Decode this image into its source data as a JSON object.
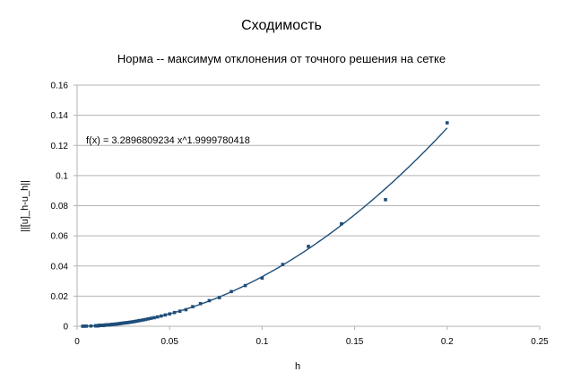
{
  "chart_data": {
    "type": "scatter",
    "title": "Сходимость",
    "subtitle": "Норма -- максимум отклонения от точного решения на сетке",
    "xlabel": "h",
    "ylabel": "||[u]_h-u_h||",
    "xlim": [
      0,
      0.25
    ],
    "ylim": [
      0,
      0.16
    ],
    "x_ticks": [
      0,
      0.05,
      0.1,
      0.15,
      0.2,
      0.25
    ],
    "y_ticks": [
      0,
      0.02,
      0.04,
      0.06,
      0.08,
      0.1,
      0.12,
      0.14,
      0.16
    ],
    "x_tick_labels": [
      "0",
      "0.05",
      "0.1",
      "0.15",
      "0.2",
      "0.25"
    ],
    "y_tick_labels": [
      "0",
      "0.02",
      "0.04",
      "0.06",
      "0.08",
      "0.1",
      "0.12",
      "0.14",
      "0.16"
    ],
    "grid": {
      "horizontal": true,
      "vertical": false
    },
    "series": [
      {
        "x": [
          0.2,
          0.166667,
          0.142857,
          0.125,
          0.111111,
          0.1,
          0.090909,
          0.083333,
          0.076923,
          0.071429,
          0.066667,
          0.0625,
          0.058824,
          0.055556,
          0.052632,
          0.05,
          0.047619,
          0.045455,
          0.043478,
          0.041667,
          0.04,
          0.038462,
          0.037037,
          0.035714,
          0.034483,
          0.033333,
          0.032258,
          0.03125,
          0.030303,
          0.029412,
          0.028571,
          0.027778,
          0.027027,
          0.026316,
          0.025641,
          0.025,
          0.02439,
          0.02381,
          0.023256,
          0.022727,
          0.022222,
          0.021739,
          0.021277,
          0.020833,
          0.020408,
          0.02,
          0.019608,
          0.019231,
          0.018868,
          0.018519,
          0.018182,
          0.017857,
          0.017544,
          0.017241,
          0.016949,
          0.016667,
          0.016393,
          0.016129,
          0.015873,
          0.015625,
          0.015385,
          0.015152,
          0.014925,
          0.014706,
          0.014493,
          0.014286,
          0.014085,
          0.013889,
          0.013699,
          0.013514,
          0.013333,
          0.013158,
          0.012987,
          0.012821,
          0.012658,
          0.0125,
          0.012346,
          0.012195,
          0.012048,
          0.011905,
          0.011765,
          0.011628,
          0.011494,
          0.011364,
          0.011236,
          0.011111,
          0.010989,
          0.01087,
          0.010753,
          0.010638,
          0.010526,
          0.010417,
          0.010309,
          0.010204,
          0.010101,
          0.01,
          0.0075,
          0.005,
          0.004,
          0.003
        ],
        "y": [
          0.135,
          0.084,
          0.068,
          0.053,
          0.041,
          0.032,
          0.027,
          0.023,
          0.019,
          0.017,
          0.015,
          0.013,
          0.011,
          0.01,
          0.0091,
          0.0082,
          0.0075,
          0.0068,
          0.0062,
          0.0057,
          0.0053,
          0.0049,
          0.0045,
          0.0042,
          0.0039,
          0.0037,
          0.0034,
          0.0032,
          0.003,
          0.0028,
          0.0027,
          0.0025,
          0.0024,
          0.0023,
          0.0022,
          0.0021,
          0.002,
          0.0019,
          0.0018,
          0.0017,
          0.0016,
          0.0016,
          0.0015,
          0.0014,
          0.0014,
          0.0013,
          0.0013,
          0.0012,
          0.0012,
          0.0011,
          0.0011,
          0.001,
          0.001,
          0.00098,
          0.00094,
          0.00091,
          0.00088,
          0.00086,
          0.00083,
          0.0008,
          0.00078,
          0.00075,
          0.00073,
          0.00071,
          0.00069,
          0.00067,
          0.00065,
          0.00063,
          0.00062,
          0.0006,
          0.00058,
          0.00057,
          0.00055,
          0.00054,
          0.00053,
          0.00051,
          0.0005,
          0.00049,
          0.00048,
          0.00047,
          0.00046,
          0.00044,
          0.00043,
          0.00042,
          0.00042,
          0.00041,
          0.0004,
          0.00039,
          0.00038,
          0.00037,
          0.00036,
          0.00036,
          0.00035,
          0.00034,
          0.00034,
          0.00033,
          0.00019,
          8.2e-05,
          5.3e-05,
          3e-05
        ],
        "color": "#1f4e79"
      }
    ],
    "trendline": {
      "type": "power",
      "coefficient": 3.2896809234,
      "exponent": 1.9999780418,
      "x_range": [
        0.003,
        0.2
      ],
      "color": "#1f4e79",
      "equation_label": "f(x) = 3.2896809234 x^1.9999780418"
    },
    "colors": {
      "series": "#1f4e79",
      "grid": "#b3b3b3",
      "axis": "#b3b3b3",
      "text": "#000000"
    }
  }
}
